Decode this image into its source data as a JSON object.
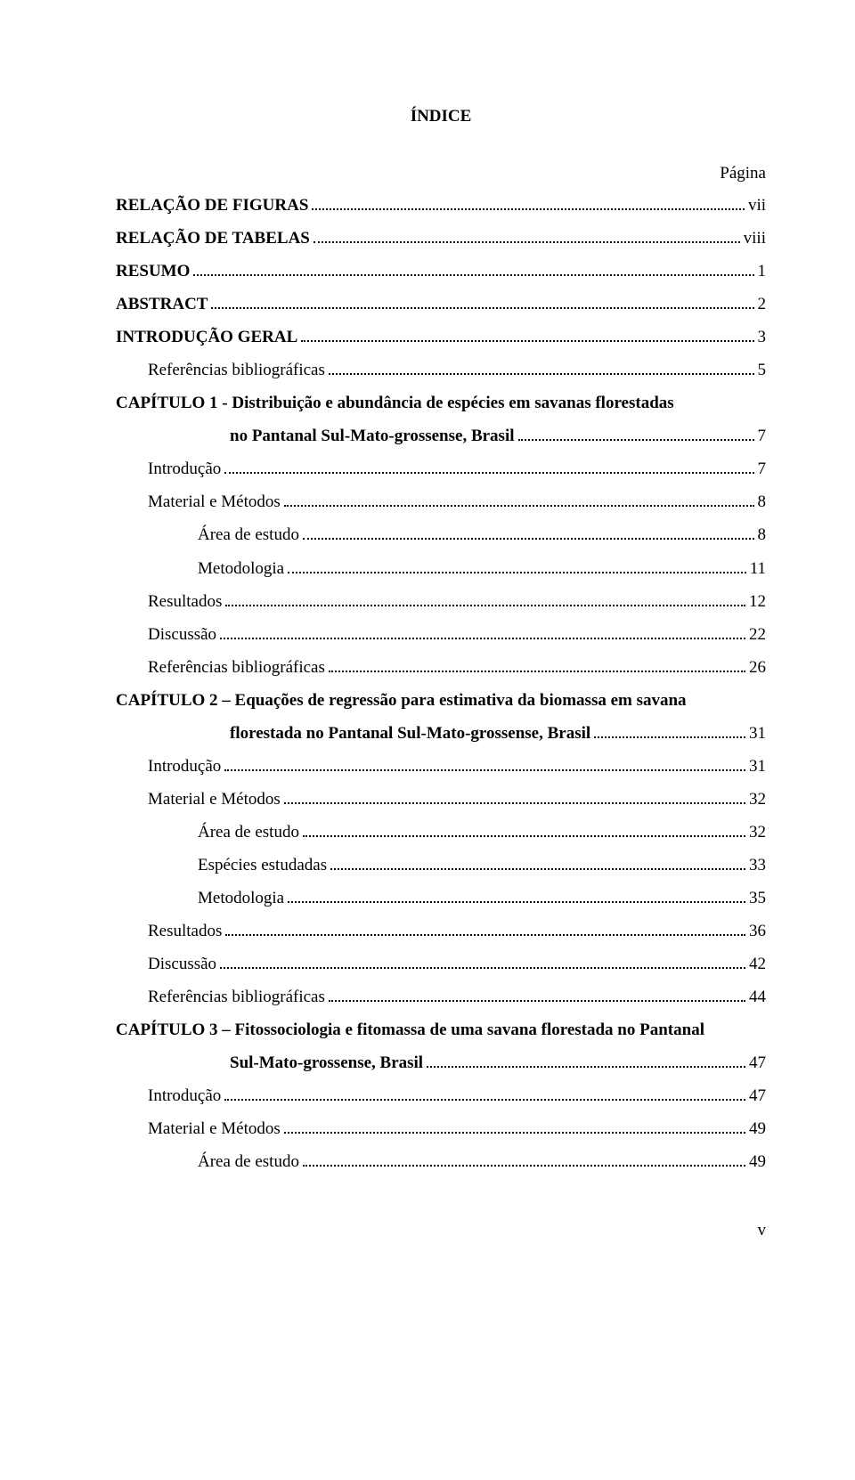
{
  "title": "ÍNDICE",
  "pagina_label": "Página",
  "roman_footer": "v",
  "entries": [
    {
      "type": "line",
      "bold": true,
      "indent": 0,
      "label": "RELAÇÃO DE FIGURAS",
      "page": "vii"
    },
    {
      "type": "line",
      "bold": true,
      "indent": 0,
      "label": "RELAÇÃO DE TABELAS",
      "page": "viii"
    },
    {
      "type": "line",
      "bold": true,
      "indent": 0,
      "label": "RESUMO",
      "page": "1"
    },
    {
      "type": "line",
      "bold": true,
      "indent": 0,
      "label": "ABSTRACT",
      "page": "2"
    },
    {
      "type": "line",
      "bold": true,
      "indent": 0,
      "label": "INTRODUÇÃO GERAL",
      "page": "3"
    },
    {
      "type": "line",
      "bold": false,
      "indent": 1,
      "label": "Referências bibliográficas",
      "page": "5"
    },
    {
      "type": "chapter",
      "first": "CAPÍTULO 1 - Distribuição  e  abundância  de  espécies  em  savanas  florestadas",
      "second": "no Pantanal Sul-Mato-grossense, Brasil",
      "page": "7"
    },
    {
      "type": "line",
      "bold": false,
      "indent": 1,
      "label": "Introdução",
      "page": "7"
    },
    {
      "type": "line",
      "bold": false,
      "indent": 1,
      "label": "Material e Métodos",
      "page": "8"
    },
    {
      "type": "line",
      "bold": false,
      "indent": 2,
      "label": "Área de estudo",
      "page": "8"
    },
    {
      "type": "line",
      "bold": false,
      "indent": 2,
      "label": "Metodologia",
      "page": "11"
    },
    {
      "type": "line",
      "bold": false,
      "indent": 1,
      "label": "Resultados",
      "page": "12"
    },
    {
      "type": "line",
      "bold": false,
      "indent": 1,
      "label": "Discussão",
      "page": "22"
    },
    {
      "type": "line",
      "bold": false,
      "indent": 1,
      "label": "Referências bibliográficas",
      "page": "26"
    },
    {
      "type": "chapter",
      "first": "CAPÍTULO 2 – Equações  de  regressão para  estimativa da  biomassa em  savana",
      "second": "florestada no Pantanal Sul-Mato-grossense, Brasil",
      "page": "31"
    },
    {
      "type": "line",
      "bold": false,
      "indent": 1,
      "label": "Introdução",
      "page": "31"
    },
    {
      "type": "line",
      "bold": false,
      "indent": 1,
      "label": "Material e Métodos",
      "page": "32"
    },
    {
      "type": "line",
      "bold": false,
      "indent": 2,
      "label": "Área de estudo",
      "page": "32"
    },
    {
      "type": "line",
      "bold": false,
      "indent": 2,
      "label": "Espécies estudadas",
      "page": "33"
    },
    {
      "type": "line",
      "bold": false,
      "indent": 2,
      "label": "Metodologia",
      "page": "35"
    },
    {
      "type": "line",
      "bold": false,
      "indent": 1,
      "label": "Resultados",
      "page": "36"
    },
    {
      "type": "line",
      "bold": false,
      "indent": 1,
      "label": "Discussão",
      "page": "42"
    },
    {
      "type": "line",
      "bold": false,
      "indent": 1,
      "label": "Referências bibliográficas",
      "page": "44"
    },
    {
      "type": "chapter",
      "first": "CAPÍTULO 3 – Fitossociologia e fitomassa de uma savana florestada no Pantanal",
      "second": "Sul-Mato-grossense, Brasil",
      "page": "47"
    },
    {
      "type": "line",
      "bold": false,
      "indent": 1,
      "label": "Introdução",
      "page": "47"
    },
    {
      "type": "line",
      "bold": false,
      "indent": 1,
      "label": "Material e Métodos",
      "page": "49"
    },
    {
      "type": "line",
      "bold": false,
      "indent": 2,
      "label": "Área de estudo",
      "page": "49"
    }
  ]
}
